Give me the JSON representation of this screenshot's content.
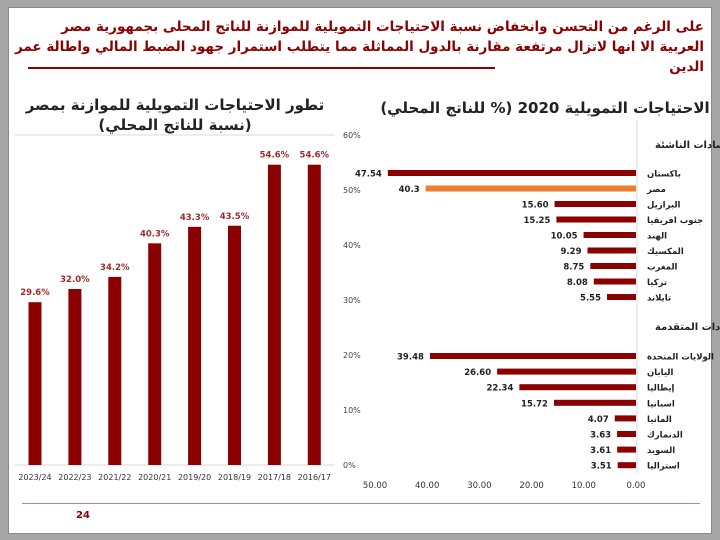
{
  "headline": "على الرغم من التحسن وانخفاض نسبة الاحتياجات التمويلية للموازنة للناتج المحلى بجمهورية مصر العربية الا انها لاتزال مرتفعة مقارنة بالدول المماثلة مما يتطلب استمرار جهود الضبط المالي واطالة عمر الدين",
  "page_number": "24",
  "colors": {
    "bar": "#8b0000",
    "highlight": "#ed7d31",
    "headline": "#8b0000"
  },
  "chart_data": [
    {
      "type": "bar",
      "title": "تطور الاحتياجات التمويلية للموازنة بمصر (نسبة للناتج المحلي)",
      "categories": [
        "2023/24",
        "2022/23",
        "2021/22",
        "2020/21",
        "2019/20",
        "2018/19",
        "2017/18",
        "2016/17"
      ],
      "values": [
        29.6,
        32.0,
        34.2,
        40.3,
        43.3,
        43.5,
        54.6,
        54.6
      ],
      "data_labels": [
        "29.6%",
        "32.0%",
        "34.2%",
        "40.3%",
        "43.3%",
        "43.5%",
        "54.6%",
        "54.6%"
      ],
      "ylim": [
        0,
        60
      ],
      "y_ticks": [
        "0%",
        "10%",
        "20%",
        "30%",
        "40%",
        "50%",
        "60%"
      ],
      "y_axis_side": "right",
      "grid": false
    },
    {
      "type": "bar",
      "orientation": "horizontal",
      "title": "الاحتياجات التمويلية 2020 (% للناتج المحلي)",
      "groups": [
        {
          "name": "بعض الاقتصادات الناشئة",
          "categories": [
            "باكستان",
            "مصر",
            "البرازيل",
            "جنوب افريقيا",
            "الهند",
            "المكسيك",
            "المغرب",
            "تركيا",
            "تايلاند"
          ],
          "values": [
            47.54,
            40.3,
            15.6,
            15.25,
            10.05,
            9.29,
            8.75,
            8.08,
            5.55
          ],
          "data_labels": [
            "47.54",
            "40.3",
            "15.60",
            "15.25",
            "10.05",
            "9.29",
            "8.75",
            "8.08",
            "5.55"
          ],
          "highlight": "مصر"
        },
        {
          "name": "بعض الاقتصادات المتقدمة",
          "categories": [
            "الولايات المتحدة",
            "اليابان",
            "إيطاليا",
            "اسبانيا",
            "المانيا",
            "الدنمارك",
            "السويد",
            "استراليا"
          ],
          "values": [
            39.48,
            26.6,
            22.34,
            15.72,
            4.07,
            3.63,
            3.61,
            3.51
          ],
          "data_labels": [
            "39.48",
            "26.60",
            "22.34",
            "15.72",
            "4.07",
            "3.63",
            "3.61",
            "3.51"
          ]
        }
      ],
      "xlim": [
        0,
        50
      ],
      "x_reversed": true,
      "x_ticks": [
        "50.00",
        "40.00",
        "30.00",
        "20.00",
        "10.00",
        "0.00"
      ]
    }
  ]
}
